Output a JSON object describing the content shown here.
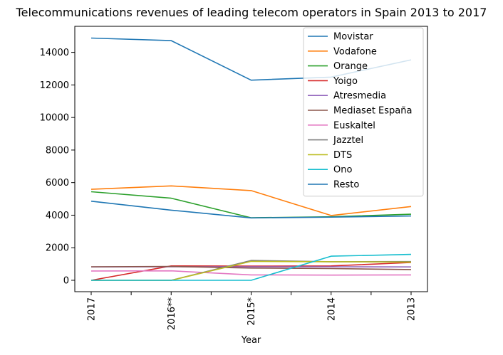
{
  "chart_data": {
    "type": "line",
    "title": "Telecommunications revenues of leading telecom operators in Spain 2013 to 2017",
    "xlabel": "Year",
    "ylabel": "",
    "categories": [
      "2017",
      "2016**",
      "2015*",
      "2014",
      "2013"
    ],
    "ylim": [
      -700,
      15600
    ],
    "yticks": [
      0,
      2000,
      4000,
      6000,
      8000,
      10000,
      12000,
      14000
    ],
    "legend_position": "top-right",
    "grid": false,
    "series": [
      {
        "name": "Movistar",
        "color": "#1f77b4",
        "values": [
          14880,
          14720,
          12290,
          12480,
          13540
        ]
      },
      {
        "name": "Vodafone",
        "color": "#ff7f0e",
        "values": [
          5590,
          5800,
          5510,
          3980,
          4530
        ]
      },
      {
        "name": "Orange",
        "color": "#2ca02c",
        "values": [
          5440,
          5040,
          3840,
          3900,
          4060
        ]
      },
      {
        "name": "Yoigo",
        "color": "#d62728",
        "values": [
          0,
          880,
          870,
          880,
          1090
        ]
      },
      {
        "name": "Atresmedia",
        "color": "#9467bd",
        "values": [
          820,
          830,
          830,
          830,
          820
        ]
      },
      {
        "name": "Mediaset España",
        "color": "#8c564b",
        "values": [
          830,
          850,
          750,
          720,
          660
        ]
      },
      {
        "name": "Euskaltel",
        "color": "#e377c2",
        "values": [
          570,
          580,
          330,
          320,
          330
        ]
      },
      {
        "name": "Jazztel",
        "color": "#7f7f7f",
        "values": [
          0,
          0,
          1220,
          1140,
          1150
        ]
      },
      {
        "name": "DTS",
        "color": "#bcbd22",
        "values": [
          0,
          0,
          1160,
          1140,
          1120
        ]
      },
      {
        "name": "Ono",
        "color": "#17becf",
        "values": [
          0,
          0,
          0,
          1480,
          1590
        ]
      },
      {
        "name": "Resto",
        "color": "#1f77b4",
        "values": [
          4860,
          4310,
          3830,
          3880,
          3950
        ]
      }
    ]
  }
}
